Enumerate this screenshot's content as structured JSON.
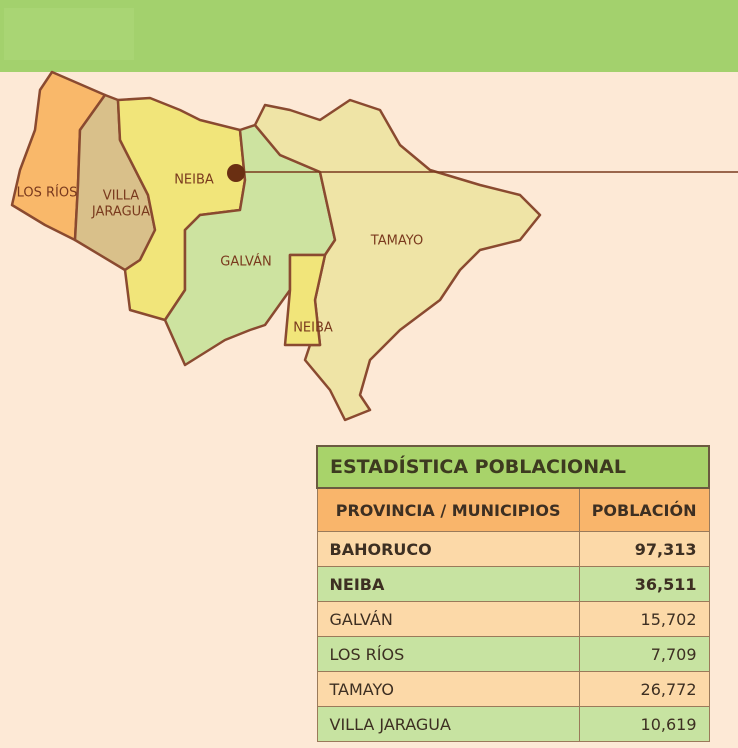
{
  "map": {
    "labels": [
      {
        "lines": [
          "LOS RÍOS"
        ]
      },
      {
        "lines": [
          "VILLA",
          "JARAGUA"
        ]
      },
      {
        "lines": [
          "NEIBA"
        ]
      },
      {
        "lines": [
          "GALVÁN"
        ]
      },
      {
        "lines": [
          "TAMAYO"
        ]
      },
      {
        "lines": [
          "NEIBA"
        ]
      }
    ]
  },
  "table": {
    "title": "ESTADÍSTICA POBLACIONAL",
    "headers": [
      "PROVINCIA / MUNICIPIOS",
      "POBLACIÓN"
    ],
    "rows": [
      [
        "BAHORUCO",
        "97,313"
      ],
      [
        "NEIBA",
        "36,511"
      ],
      [
        "GALVÁN",
        "15,702"
      ],
      [
        "LOS RÍOS",
        "7,709"
      ],
      [
        "TAMAYO",
        "26,772"
      ],
      [
        "VILLA JARAGUA",
        "10,619"
      ]
    ]
  }
}
